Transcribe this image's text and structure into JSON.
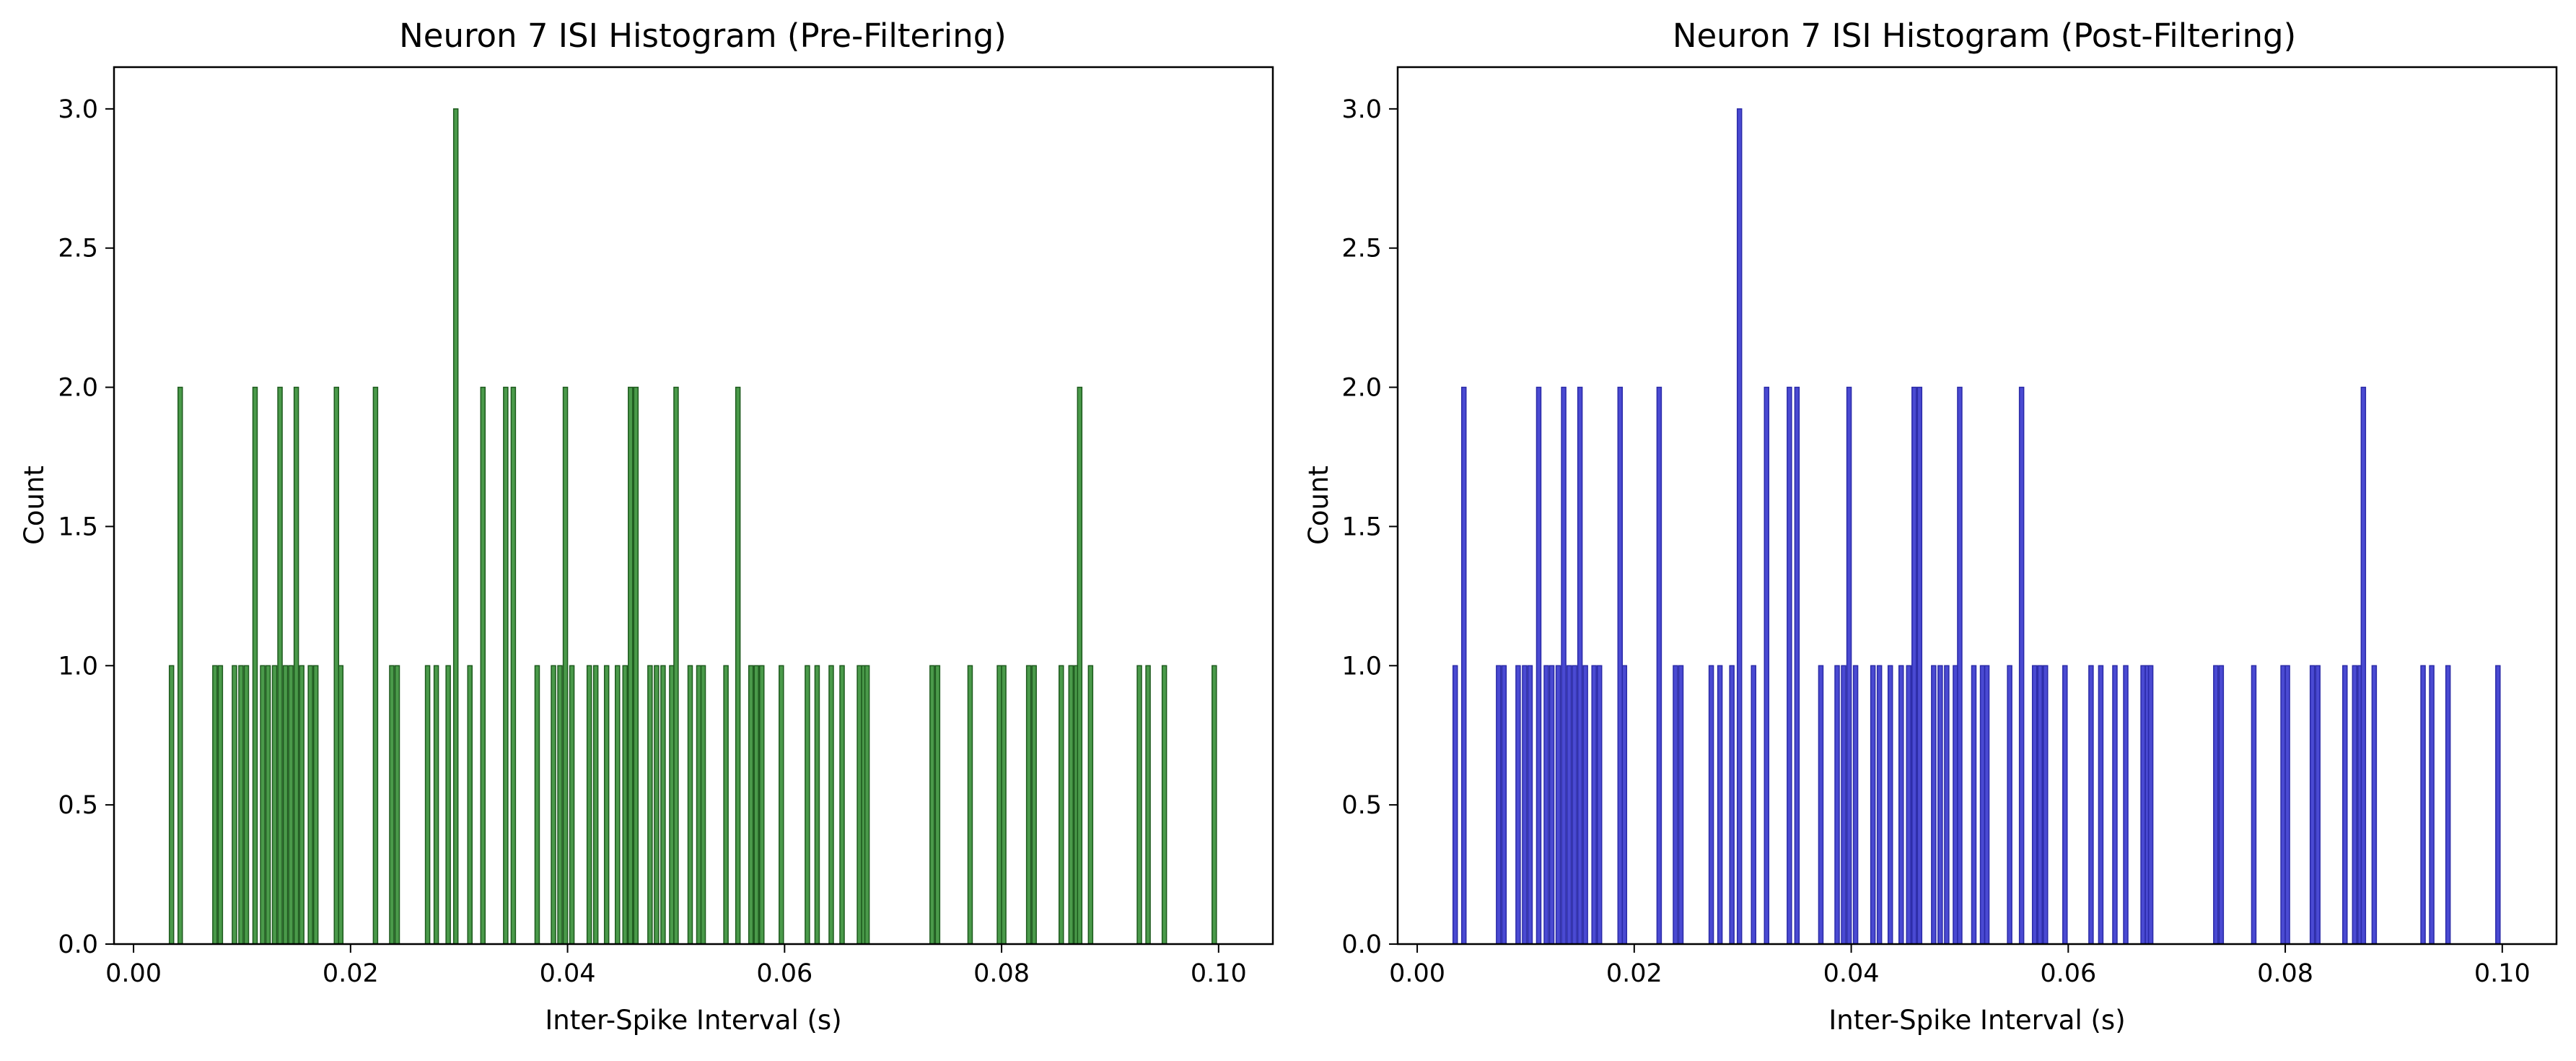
{
  "figure": {
    "panels": 2
  },
  "chart_data": [
    {
      "type": "bar",
      "title": "Neuron 7 ISI Histogram (Pre-Filtering)",
      "xlabel": "Inter-Spike Interval (s)",
      "ylabel": "Count",
      "xlim": [
        -0.0018,
        0.105
      ],
      "ylim": [
        0,
        3.15
      ],
      "xticks": [
        0.0,
        0.02,
        0.04,
        0.06,
        0.08,
        0.1
      ],
      "xtick_labels": [
        "0.00",
        "0.02",
        "0.04",
        "0.06",
        "0.08",
        "0.10"
      ],
      "yticks": [
        0.0,
        0.5,
        1.0,
        1.5,
        2.0,
        2.5,
        3.0
      ],
      "ytick_labels": [
        "0.0",
        "0.5",
        "1.0",
        "1.5",
        "2.0",
        "2.5",
        "3.0"
      ],
      "bin_width": 0.0003,
      "grid": false,
      "bar_color": "#4a9a4a",
      "edge_color": "#1d5a1d",
      "x": [
        0.0035,
        0.0043,
        0.0075,
        0.008,
        0.0093,
        0.0099,
        0.0104,
        0.0112,
        0.0119,
        0.0124,
        0.013,
        0.0135,
        0.014,
        0.0145,
        0.015,
        0.0155,
        0.0163,
        0.0168,
        0.0187,
        0.0191,
        0.0223,
        0.0238,
        0.0243,
        0.0271,
        0.0279,
        0.029,
        0.0297,
        0.031,
        0.0322,
        0.0343,
        0.035,
        0.0372,
        0.0387,
        0.0393,
        0.0398,
        0.0404,
        0.042,
        0.0426,
        0.0436,
        0.0446,
        0.0453,
        0.0458,
        0.0463,
        0.0476,
        0.0482,
        0.0488,
        0.0496,
        0.05,
        0.0513,
        0.0521,
        0.0525,
        0.0546,
        0.0557,
        0.0569,
        0.0574,
        0.0579,
        0.0597,
        0.0621,
        0.063,
        0.0643,
        0.0653,
        0.0669,
        0.0673,
        0.0676,
        0.0736,
        0.0741,
        0.0771,
        0.0798,
        0.0802,
        0.0825,
        0.083,
        0.0855,
        0.0864,
        0.0869,
        0.0872,
        0.0882,
        0.0927,
        0.0935,
        0.095,
        0.0996
      ],
      "values": [
        1,
        2,
        1,
        1,
        1,
        1,
        1,
        2,
        1,
        1,
        1,
        2,
        1,
        1,
        2,
        1,
        1,
        1,
        2,
        1,
        2,
        1,
        1,
        1,
        1,
        1,
        3,
        1,
        2,
        2,
        2,
        1,
        1,
        1,
        2,
        1,
        1,
        1,
        1,
        1,
        1,
        2,
        2,
        1,
        1,
        1,
        1,
        2,
        1,
        1,
        1,
        1,
        2,
        1,
        1,
        1,
        1,
        1,
        1,
        1,
        1,
        1,
        1,
        1,
        1,
        1,
        1,
        1,
        1,
        1,
        1,
        1,
        1,
        1,
        2,
        1,
        1,
        1,
        1,
        1
      ]
    },
    {
      "type": "bar",
      "title": "Neuron 7 ISI Histogram (Post-Filtering)",
      "xlabel": "Inter-Spike Interval (s)",
      "ylabel": "Count",
      "xlim": [
        -0.0018,
        0.105
      ],
      "ylim": [
        0,
        3.15
      ],
      "xticks": [
        0.0,
        0.02,
        0.04,
        0.06,
        0.08,
        0.1
      ],
      "xtick_labels": [
        "0.00",
        "0.02",
        "0.04",
        "0.06",
        "0.08",
        "0.10"
      ],
      "yticks": [
        0.0,
        0.5,
        1.0,
        1.5,
        2.0,
        2.5,
        3.0
      ],
      "ytick_labels": [
        "0.0",
        "0.5",
        "1.0",
        "1.5",
        "2.0",
        "2.5",
        "3.0"
      ],
      "bin_width": 0.0003,
      "grid": false,
      "bar_color": "#4a4ad2",
      "edge_color": "#2a2aa8",
      "x": [
        0.0035,
        0.0043,
        0.0075,
        0.008,
        0.0093,
        0.0099,
        0.0104,
        0.0112,
        0.0119,
        0.0124,
        0.013,
        0.0135,
        0.014,
        0.0145,
        0.015,
        0.0155,
        0.0163,
        0.0168,
        0.0187,
        0.0191,
        0.0223,
        0.0238,
        0.0243,
        0.0271,
        0.0279,
        0.029,
        0.0297,
        0.031,
        0.0322,
        0.0343,
        0.035,
        0.0372,
        0.0387,
        0.0393,
        0.0398,
        0.0404,
        0.042,
        0.0426,
        0.0436,
        0.0446,
        0.0453,
        0.0458,
        0.0463,
        0.0476,
        0.0482,
        0.0488,
        0.0496,
        0.05,
        0.0513,
        0.0521,
        0.0525,
        0.0546,
        0.0557,
        0.0569,
        0.0574,
        0.0579,
        0.0597,
        0.0621,
        0.063,
        0.0643,
        0.0653,
        0.0669,
        0.0673,
        0.0676,
        0.0736,
        0.0741,
        0.0771,
        0.0798,
        0.0802,
        0.0825,
        0.083,
        0.0855,
        0.0864,
        0.0869,
        0.0872,
        0.0882,
        0.0927,
        0.0935,
        0.095,
        0.0996
      ],
      "values": [
        1,
        2,
        1,
        1,
        1,
        1,
        1,
        2,
        1,
        1,
        1,
        2,
        1,
        1,
        2,
        1,
        1,
        1,
        2,
        1,
        2,
        1,
        1,
        1,
        1,
        1,
        3,
        1,
        2,
        2,
        2,
        1,
        1,
        1,
        2,
        1,
        1,
        1,
        1,
        1,
        1,
        2,
        2,
        1,
        1,
        1,
        1,
        2,
        1,
        1,
        1,
        1,
        2,
        1,
        1,
        1,
        1,
        1,
        1,
        1,
        1,
        1,
        1,
        1,
        1,
        1,
        1,
        1,
        1,
        1,
        1,
        1,
        1,
        1,
        2,
        1,
        1,
        1,
        1,
        1
      ]
    }
  ]
}
